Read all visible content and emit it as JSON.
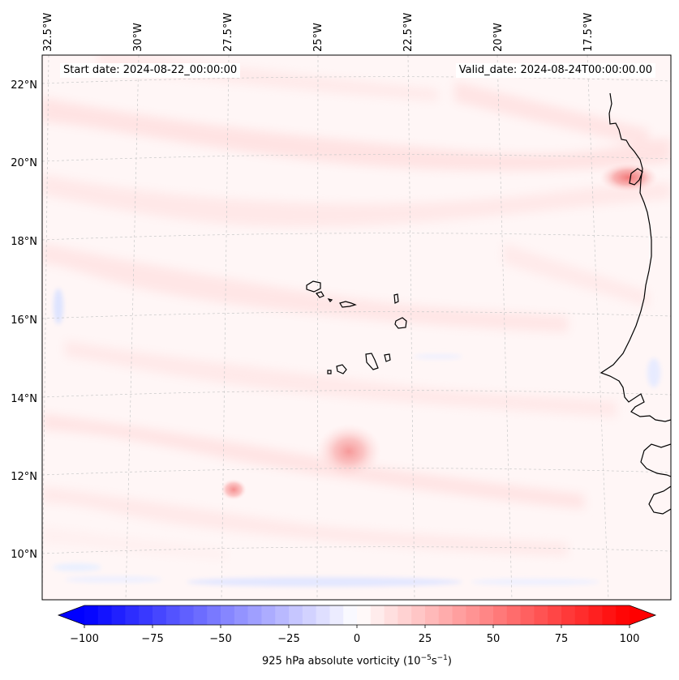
{
  "map": {
    "start_date": "Start date: 2024-08-22_00:00:00",
    "valid_date": "Valid_date: 2024-08-24T00:00:00.00",
    "lon_labels": [
      "32.5°W",
      "30°W",
      "27.5°W",
      "25°W",
      "22.5°W",
      "20°W",
      "17.5°W"
    ],
    "lat_labels": [
      "22°N",
      "20°N",
      "18°N",
      "16°N",
      "14°N",
      "12°N",
      "10°N"
    ],
    "field": "925 hPa absolute vorticity",
    "colors": {
      "negative": "#0000ff",
      "zero": "#ffffff",
      "positive": "#ff0000",
      "coast": "#000000",
      "grid": "#c8c8c8"
    }
  },
  "colorbar": {
    "label_text": "925 hPa absolute vorticity (10",
    "label_exp1": "−5",
    "label_mid": "s",
    "label_exp2": "−1",
    "label_end": ")",
    "ticks": [
      "−100",
      "−75",
      "−50",
      "−25",
      "0",
      "25",
      "50",
      "75",
      "100"
    ],
    "tick_values": [
      -100,
      -75,
      -50,
      -25,
      0,
      25,
      50,
      75,
      100
    ],
    "min": -100,
    "max": 100,
    "step": 5
  }
}
